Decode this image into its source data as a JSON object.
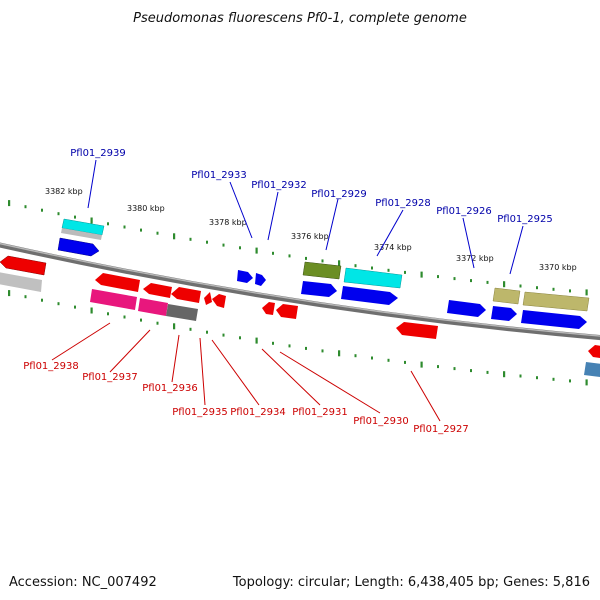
{
  "title": "Pseudomonas fluorescens Pf0-1, complete genome",
  "footer": {
    "accession": "Accession: NC_007492",
    "summary": "Topology: circular; Length: 6,438,405 bp; Genes: 5,816"
  },
  "colors": {
    "backbone": "#808080",
    "tick": "#2e8b2e",
    "label_forward": "#0000aa",
    "label_reverse": "#cc0000"
  },
  "scale_labels": [
    "3382 kbp",
    "3380 kbp",
    "3378 kbp",
    "3376 kbp",
    "3374 kbp",
    "3372 kbp",
    "3370 kbp"
  ],
  "top_labels": [
    "Pfl01_2939",
    "Pfl01_2933",
    "Pfl01_2932",
    "Pfl01_2929",
    "Pfl01_2928",
    "Pfl01_2926",
    "Pfl01_2925"
  ],
  "bottom_labels": [
    "Pfl01_2938",
    "Pfl01_2937",
    "Pfl01_2936",
    "Pfl01_2935",
    "Pfl01_2934",
    "Pfl01_2931",
    "Pfl01_2930",
    "Pfl01_2927"
  ]
}
